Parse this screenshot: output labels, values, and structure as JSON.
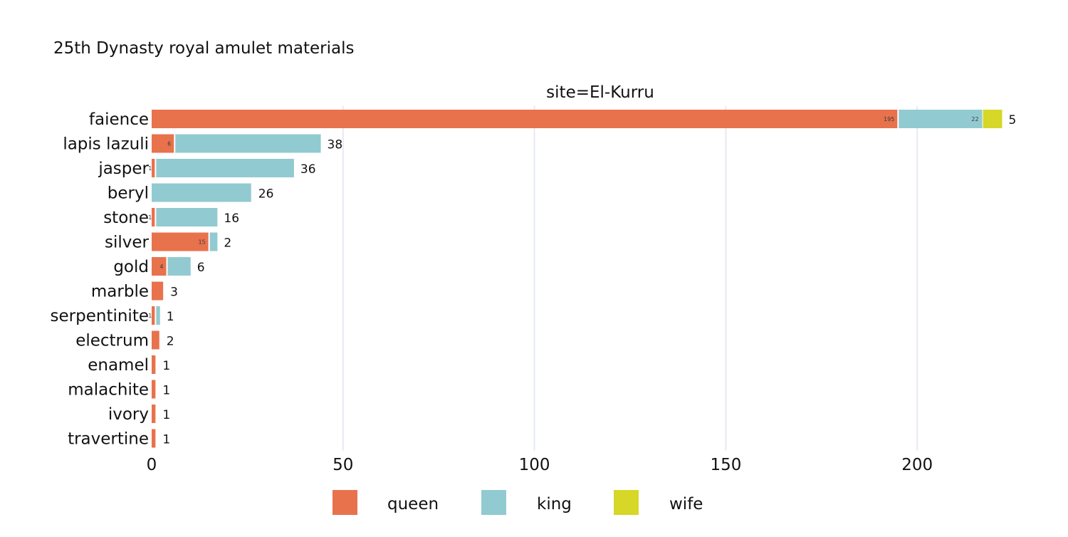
{
  "chart_data": {
    "type": "bar",
    "orientation": "horizontal",
    "barmode": "stack",
    "title": "25th Dynasty royal amulet materials",
    "facet_label": "site=El-Kurru",
    "xlabel": "",
    "ylabel": "",
    "xlim": [
      0,
      225
    ],
    "xticks": [
      0,
      50,
      100,
      150,
      200
    ],
    "grid": true,
    "legend_position": "bottom-center",
    "categories": [
      "faience",
      "lapis lazuli",
      "jasper",
      "beryl",
      "stone",
      "silver",
      "gold",
      "marble",
      "serpentinite",
      "electrum",
      "enamel",
      "malachite",
      "ivory",
      "travertine"
    ],
    "series": [
      {
        "name": "queen",
        "color": "#E8724C",
        "values": [
          195,
          6,
          1,
          0,
          1,
          15,
          4,
          3,
          1,
          2,
          1,
          1,
          1,
          1
        ],
        "labels": [
          "195",
          "6",
          "1",
          "",
          "1",
          "15",
          "4",
          "3",
          "1",
          "2",
          "1",
          "1",
          "1",
          "1"
        ]
      },
      {
        "name": "king",
        "color": "#92CAD1",
        "values": [
          22,
          38,
          36,
          26,
          16,
          2,
          6,
          0,
          1,
          0,
          0,
          0,
          0,
          0
        ],
        "labels": [
          "22",
          "38",
          "36",
          "26",
          "16",
          "2",
          "6",
          "",
          "1",
          "",
          "",
          "",
          "",
          ""
        ]
      },
      {
        "name": "wife",
        "color": "#D6D727",
        "values": [
          5,
          0,
          0,
          0,
          0,
          0,
          0,
          0,
          0,
          0,
          0,
          0,
          0,
          0
        ],
        "labels": [
          "5",
          "",
          "",
          "",
          "",
          "",
          "",
          "",
          "",
          "",
          "",
          "",
          "",
          ""
        ]
      }
    ]
  }
}
